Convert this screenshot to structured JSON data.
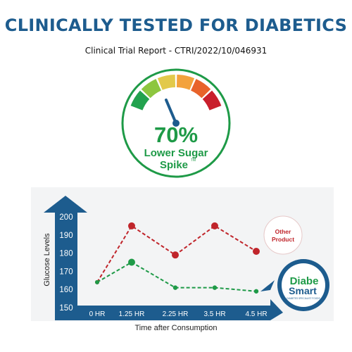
{
  "header": {
    "title": "CLINICALLY TESTED FOR DIABETICS",
    "subtitle": "Clinical Trial Report - CTRI/2022/10/046931"
  },
  "gauge": {
    "value_text": "70%",
    "label_line1": "Lower Sugar",
    "label_line2": "Spike",
    "trademark": "TM",
    "accent_color": "#1e9a47",
    "segment_colors": [
      "#22a24e",
      "#8dc63f",
      "#e2c94a",
      "#f3a23c",
      "#e8632a",
      "#c91f2c"
    ]
  },
  "badges": {
    "other_product": [
      "Other",
      "Product"
    ],
    "brand_top": "Diabe",
    "brand_bottom": "Smart",
    "brand_tagline": "DIABETES SPECIALIST FOODS"
  },
  "chart_data": {
    "type": "line",
    "categories": [
      "0 HR",
      "1.25 HR",
      "2.25 HR",
      "3.5 HR",
      "4.5 HR"
    ],
    "xlabel": "Time after Consumption",
    "ylabel": "Glucose Levels",
    "ylim": [
      150,
      200
    ],
    "yticks": [
      150,
      160,
      170,
      180,
      190,
      200
    ],
    "grid": false,
    "series": [
      {
        "name": "Other Product",
        "color": "#c0252b",
        "values": [
          164,
          195,
          179,
          195,
          181
        ]
      },
      {
        "name": "DiabeSmart",
        "color": "#1e9a47",
        "values": [
          164,
          175,
          161,
          161,
          159
        ]
      }
    ]
  }
}
